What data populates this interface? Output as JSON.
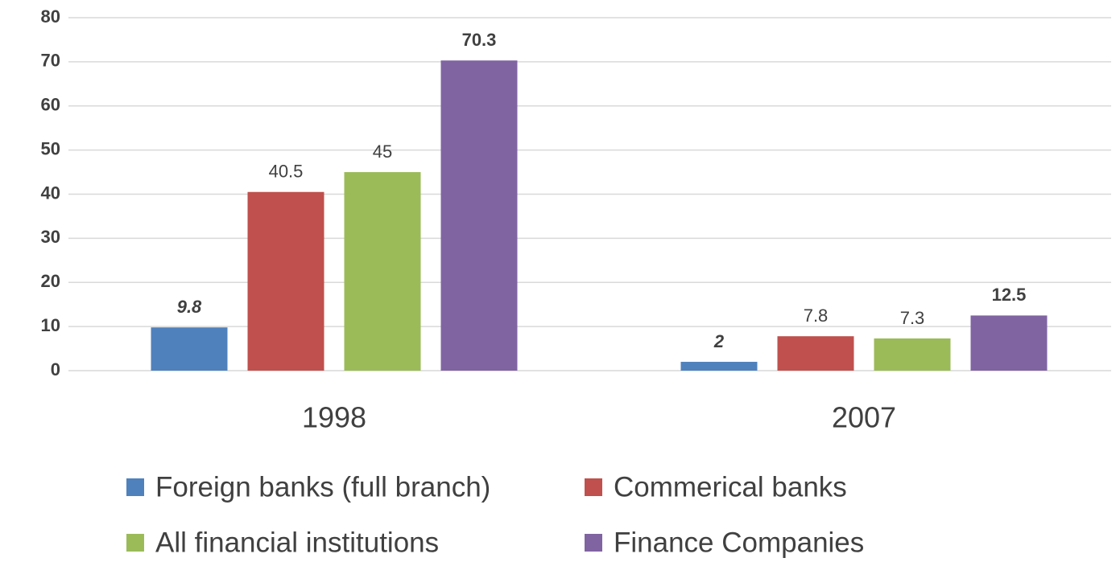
{
  "chart_data": {
    "type": "bar",
    "categories": [
      "1998",
      "2007"
    ],
    "series": [
      {
        "name": "Foreign banks (full branch)",
        "color": "#4f81bd",
        "values": [
          9.8,
          2
        ]
      },
      {
        "name": "Commerical banks",
        "color": "#c0504d",
        "values": [
          40.5,
          7.8
        ]
      },
      {
        "name": "All financial institutions",
        "color": "#9bbb59",
        "values": [
          45,
          7.3
        ]
      },
      {
        "name": "Finance Companies",
        "color": "#8064a2",
        "values": [
          70.3,
          12.5
        ]
      }
    ],
    "ylim": [
      0,
      80
    ],
    "yticks": [
      0,
      10,
      20,
      30,
      40,
      50,
      60,
      70,
      80
    ],
    "grid": true,
    "legend": "bottom"
  }
}
